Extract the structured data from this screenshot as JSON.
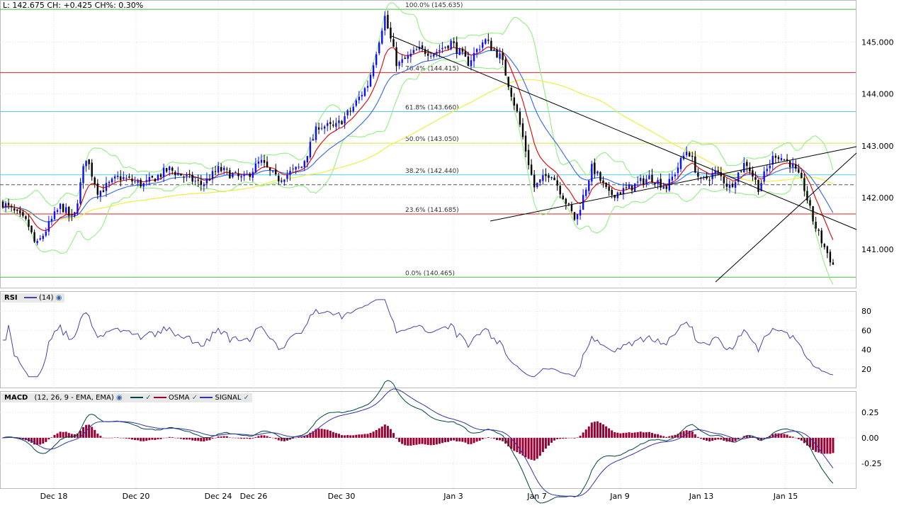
{
  "header": {
    "quote": "L: 142.675 CH: +0.425 CH%: 0.30%"
  },
  "panels": {
    "rsi": {
      "name": "RSI",
      "params": "(14)"
    },
    "macd": {
      "name": "MACD",
      "params": "(12, 26, 9 - EMA, EMA)",
      "osma": "OSMA",
      "signal": "SIGNAL"
    }
  },
  "colors": {
    "up": "#1010ee",
    "down": "#000000",
    "ema_fast": "#dd0000",
    "ema_mid": "#3366ee",
    "sma_long": "#eeee44",
    "bollinger": "#88ee77",
    "fib_green": "#44bb44",
    "fib_red": "#dd2222",
    "fib_cyan": "#55ccee",
    "fib_yellow": "#dddd44",
    "rsi_line": "#4444aa",
    "macd_line": "#004444",
    "signal_line": "#3333aa",
    "osma_bar": "#990033"
  },
  "chart_data": [
    {
      "type": "candlestick",
      "title": "",
      "y_ticks": [
        "145.000",
        "144.000",
        "143.000",
        "142.000",
        "141.000"
      ],
      "ylim": [
        140.25,
        145.8
      ],
      "x_ticks": [
        "Dec 18",
        "Dec 20",
        "Dec 24",
        "Dec 26",
        "Dec 30",
        "Jan 3",
        "Jan 7",
        "Jan 9",
        "Jan 13",
        "Jan 15"
      ],
      "fibonacci": [
        {
          "label": "100.0% (145.635)",
          "value": 145.635,
          "color": "green"
        },
        {
          "label": "76.4% (144.415)",
          "value": 144.415,
          "color": "red"
        },
        {
          "label": "61.8% (143.660)",
          "value": 143.66,
          "color": "cyan"
        },
        {
          "label": "50.0% (143.050)",
          "value": 143.05,
          "color": "yellow"
        },
        {
          "label": "38.2% (142.440)",
          "value": 142.44,
          "color": "cyan"
        },
        {
          "label": "23.6% (141.685)",
          "value": 141.685,
          "color": "red"
        },
        {
          "label": "0.0% (140.465)",
          "value": 140.465,
          "color": "green"
        }
      ],
      "last_price": 142.25,
      "price_path": [
        [
          0,
          141.9
        ],
        [
          0.03,
          141.5
        ],
        [
          0.04,
          141.05
        ],
        [
          0.06,
          141.6
        ],
        [
          0.07,
          141.85
        ],
        [
          0.085,
          141.55
        ],
        [
          0.1,
          142.8
        ],
        [
          0.115,
          142.1
        ],
        [
          0.14,
          142.4
        ],
        [
          0.17,
          142.25
        ],
        [
          0.2,
          142.55
        ],
        [
          0.22,
          142.4
        ],
        [
          0.24,
          142.25
        ],
        [
          0.26,
          142.55
        ],
        [
          0.29,
          142.35
        ],
        [
          0.31,
          142.7
        ],
        [
          0.33,
          142.35
        ],
        [
          0.36,
          142.6
        ],
        [
          0.38,
          143.4
        ],
        [
          0.4,
          143.35
        ],
        [
          0.42,
          143.7
        ],
        [
          0.44,
          144.2
        ],
        [
          0.46,
          145.5
        ],
        [
          0.475,
          144.55
        ],
        [
          0.5,
          144.85
        ],
        [
          0.52,
          144.8
        ],
        [
          0.54,
          145.0
        ],
        [
          0.56,
          144.6
        ],
        [
          0.58,
          145.05
        ],
        [
          0.6,
          144.7
        ],
        [
          0.62,
          143.6
        ],
        [
          0.64,
          142.2
        ],
        [
          0.66,
          142.5
        ],
        [
          0.69,
          141.55
        ],
        [
          0.71,
          142.6
        ],
        [
          0.73,
          142.05
        ],
        [
          0.75,
          142.15
        ],
        [
          0.78,
          142.4
        ],
        [
          0.8,
          142.2
        ],
        [
          0.825,
          142.95
        ],
        [
          0.84,
          142.3
        ],
        [
          0.86,
          142.5
        ],
        [
          0.875,
          142.2
        ],
        [
          0.895,
          142.7
        ],
        [
          0.91,
          142.2
        ],
        [
          0.93,
          142.85
        ],
        [
          0.95,
          142.65
        ],
        [
          0.965,
          142.2
        ],
        [
          0.975,
          141.6
        ],
        [
          0.985,
          141.2
        ],
        [
          1.0,
          140.7
        ]
      ]
    },
    {
      "type": "line",
      "name": "RSI",
      "y_ticks": [
        "80",
        "60",
        "40",
        "20"
      ],
      "ylim": [
        0,
        100
      ]
    },
    {
      "type": "bar",
      "name": "MACD",
      "y_ticks": [
        "0.25",
        "0.00",
        "-0.25"
      ],
      "ylim": [
        -0.5,
        0.45
      ]
    }
  ]
}
